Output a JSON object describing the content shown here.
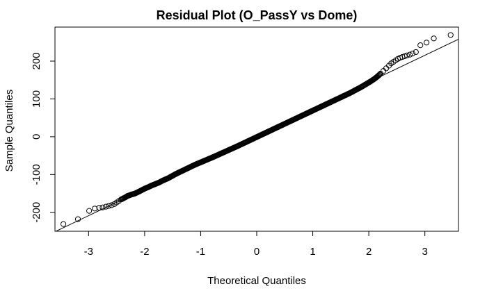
{
  "chart_data": {
    "type": "scatter",
    "title": "Residual Plot (O_PassY vs Dome)",
    "xlabel": "Theoretical Quantiles",
    "ylabel": "Sample Quantiles",
    "xlim": [
      -3.6,
      3.6
    ],
    "ylim": [
      -250,
      290
    ],
    "x_ticks": [
      -3,
      -2,
      -1,
      0,
      1,
      2,
      3
    ],
    "x_tick_labels": [
      "-3",
      "-2",
      "-1",
      "0",
      "1",
      "2",
      "3"
    ],
    "y_ticks": [
      -200,
      -100,
      0,
      100,
      200
    ],
    "y_tick_labels": [
      "-200",
      "-100",
      "0",
      "100",
      "200"
    ],
    "grid": false,
    "marker": "open-circle",
    "reference_line": {
      "intercept": 3.3,
      "slope": 70.7
    },
    "series": [
      {
        "x": [
          -3.45,
          -3.19,
          -2.99,
          -2.89,
          -2.81,
          -2.75,
          -2.69,
          -2.64,
          -2.59,
          -2.54,
          -2.5,
          -2.46,
          -2.42,
          -2.38,
          -2.34,
          -2.31,
          -2.27,
          -2.24,
          -2.21,
          -2.17,
          -2.14,
          -2.1,
          -2.06,
          -2.02,
          -1.98,
          -1.93,
          -1.89,
          -1.84,
          -1.79,
          -1.74,
          -1.69,
          -1.63,
          -1.57,
          -1.51,
          -1.45,
          -1.38,
          -1.31,
          -1.24,
          -1.17,
          -1.1,
          -1.02,
          -0.94,
          -0.86,
          -0.78,
          -0.69,
          -0.6,
          -0.51,
          -0.42,
          -0.33,
          -0.23,
          -0.13,
          -0.03,
          0.07,
          0.17,
          0.27,
          0.37,
          0.47,
          0.57,
          0.67,
          0.77,
          0.87,
          0.97,
          1.07,
          1.17,
          1.27,
          1.37,
          1.47,
          1.57,
          1.67,
          1.77,
          1.86,
          1.95,
          2.03,
          2.1,
          2.16,
          2.21,
          2.26,
          2.31,
          2.36,
          2.4,
          2.44,
          2.48,
          2.52,
          2.56,
          2.6,
          2.64,
          2.68,
          2.73,
          2.78,
          2.84,
          2.92,
          3.03,
          3.16,
          3.46
        ],
        "y": [
          -231,
          -218,
          -196,
          -190,
          -188,
          -187,
          -185,
          -183,
          -181,
          -178,
          -174,
          -170,
          -166,
          -163,
          -160,
          -157,
          -155,
          -153,
          -152,
          -150,
          -148,
          -145,
          -142,
          -139,
          -136,
          -133,
          -130,
          -127,
          -124,
          -121,
          -117,
          -113,
          -109,
          -104,
          -99,
          -94,
          -89,
          -84,
          -79,
          -74,
          -69,
          -64,
          -59,
          -54,
          -48,
          -42,
          -36,
          -30,
          -24,
          -17,
          -10,
          -3,
          4,
          11,
          18,
          25,
          32,
          39,
          46,
          53,
          60,
          67,
          74,
          81,
          88,
          95,
          102,
          109,
          116,
          124,
          131,
          139,
          146,
          153,
          160,
          167,
          174,
          181,
          188,
          194,
          198,
          202,
          206,
          209,
          211,
          213,
          215,
          217,
          220,
          224,
          242,
          249,
          260,
          269
        ]
      }
    ]
  }
}
